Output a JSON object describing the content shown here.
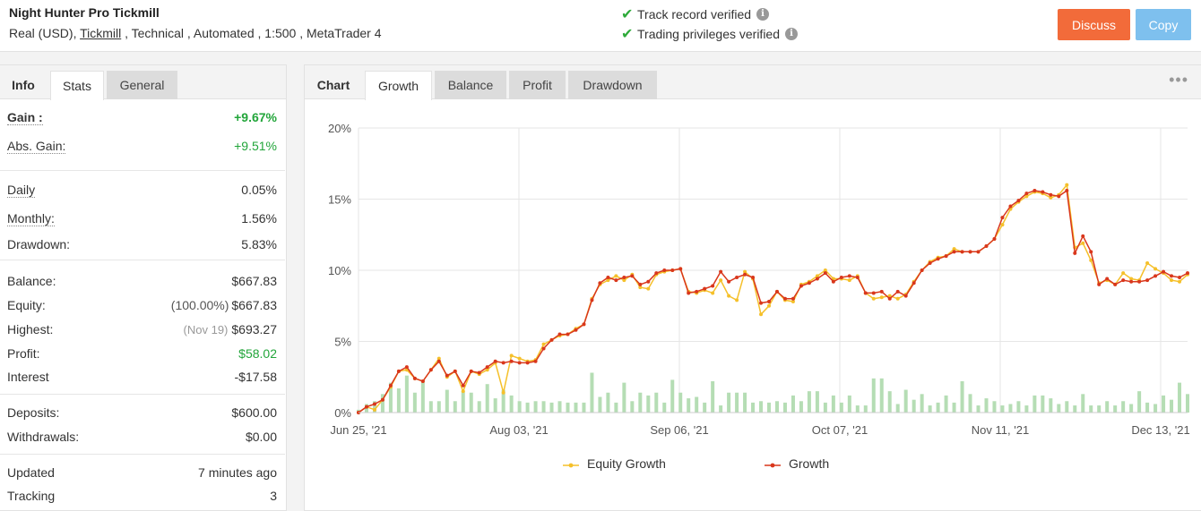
{
  "header": {
    "title": "Night Hunter Pro Tickmill",
    "subtitle_prefix": "Real (USD), ",
    "broker_link": "Tickmill",
    "subtitle_suffix": " , Technical , Automated , 1:500 , MetaTrader 4",
    "verified_1": "Track record verified",
    "verified_2": "Trading privileges verified",
    "discuss_label": "Discuss",
    "copy_label": "Copy"
  },
  "left_tabs": {
    "info": "Info",
    "stats": "Stats",
    "general": "General"
  },
  "stats": {
    "gain": {
      "label": "Gain :",
      "value": "+9.67%"
    },
    "abs_gain": {
      "label": "Abs. Gain:",
      "value": "+9.51%"
    },
    "daily": {
      "label": "Daily",
      "value": "0.05%"
    },
    "monthly": {
      "label": "Monthly:",
      "value": "1.56%"
    },
    "drawdown": {
      "label": "Drawdown:",
      "value": "5.83%"
    },
    "balance": {
      "label": "Balance:",
      "value": "$667.83"
    },
    "equity": {
      "label": "Equity:",
      "note": "(100.00%)",
      "value": "$667.83"
    },
    "highest": {
      "label": "Highest:",
      "note": "(Nov 19)",
      "value": "$693.27"
    },
    "profit": {
      "label": "Profit:",
      "value": "$58.02"
    },
    "interest": {
      "label": "Interest",
      "value": "-$17.58"
    },
    "deposits": {
      "label": "Deposits:",
      "value": "$600.00"
    },
    "withdrawals": {
      "label": "Withdrawals:",
      "value": "$0.00"
    },
    "updated": {
      "label": "Updated",
      "value": "7 minutes ago"
    },
    "tracking": {
      "label": "Tracking",
      "value": "3"
    }
  },
  "right_tabs": {
    "chart": "Chart",
    "growth": "Growth",
    "balance": "Balance",
    "profit": "Profit",
    "drawdown": "Drawdown",
    "more": "•••"
  },
  "chart_data": {
    "type": "line",
    "y_ticks": [
      "0%",
      "5%",
      "10%",
      "15%",
      "20%"
    ],
    "ylim": [
      0,
      20
    ],
    "x_ticks": [
      "Jun 25, '21",
      "Aug 03, '21",
      "Sep 06, '21",
      "Oct 07, '21",
      "Nov 11, '21",
      "Dec 13, '21"
    ],
    "grid": true,
    "legend_position": "bottom",
    "colors": {
      "equity": "#f5c02a",
      "growth": "#d9371c",
      "bars": "#b5ddb4"
    },
    "series": [
      {
        "name": "Equity Growth",
        "values": [
          0,
          0.4,
          0.2,
          0.9,
          1.8,
          2.9,
          3.0,
          2.4,
          2.2,
          3.0,
          3.8,
          2.5,
          2.9,
          1.5,
          2.9,
          2.7,
          3.0,
          3.5,
          1.4,
          4.0,
          3.8,
          3.6,
          3.7,
          4.8,
          5.1,
          5.4,
          5.5,
          5.9,
          6.2,
          8.0,
          9.0,
          9.3,
          9.6,
          9.3,
          9.7,
          8.8,
          8.7,
          9.7,
          9.9,
          10.0,
          10.1,
          8.5,
          8.4,
          8.6,
          8.4,
          9.3,
          8.2,
          7.9,
          9.9,
          9.4,
          6.9,
          7.5,
          8.5,
          7.9,
          7.8,
          9.0,
          9.2,
          9.6,
          10.0,
          9.4,
          9.4,
          9.3,
          9.6,
          8.4,
          8.0,
          8.1,
          8.2,
          8.0,
          8.3,
          9.2,
          10.0,
          10.6,
          10.9,
          11.0,
          11.5,
          11.3,
          11.3,
          11.3,
          11.7,
          12.2,
          13.2,
          14.3,
          14.8,
          15.2,
          15.5,
          15.4,
          15.1,
          15.3,
          16.0,
          11.6,
          11.9,
          10.7,
          9.1,
          9.3,
          9.0,
          9.8,
          9.4,
          9.3,
          10.5,
          10.1,
          9.8,
          9.3,
          9.2,
          9.7
        ]
      },
      {
        "name": "Growth",
        "values": [
          0,
          0.4,
          0.6,
          0.9,
          1.9,
          2.9,
          3.2,
          2.4,
          2.2,
          3.0,
          3.6,
          2.6,
          2.9,
          1.9,
          2.9,
          2.8,
          3.2,
          3.6,
          3.5,
          3.6,
          3.5,
          3.5,
          3.6,
          4.5,
          5.1,
          5.5,
          5.5,
          5.8,
          6.2,
          7.9,
          9.1,
          9.5,
          9.3,
          9.5,
          9.6,
          9.0,
          9.2,
          9.8,
          10.0,
          10.0,
          10.1,
          8.4,
          8.5,
          8.7,
          8.9,
          9.9,
          9.2,
          9.5,
          9.7,
          9.5,
          7.7,
          7.8,
          8.5,
          8.0,
          8.0,
          8.9,
          9.1,
          9.4,
          9.8,
          9.2,
          9.5,
          9.6,
          9.5,
          8.4,
          8.4,
          8.5,
          8.0,
          8.5,
          8.2,
          9.1,
          10.0,
          10.5,
          10.8,
          11.0,
          11.3,
          11.3,
          11.3,
          11.3,
          11.7,
          12.2,
          13.7,
          14.5,
          14.9,
          15.4,
          15.6,
          15.5,
          15.3,
          15.2,
          15.6,
          11.2,
          12.4,
          11.3,
          9.0,
          9.4,
          9.0,
          9.3,
          9.2,
          9.2,
          9.3,
          9.6,
          9.9,
          9.6,
          9.5,
          9.8
        ]
      }
    ],
    "bar_series": {
      "name": "",
      "values": [
        0.2,
        0.6,
        0.8,
        1.3,
        2.1,
        1.7,
        2.6,
        1.4,
        2.3,
        0.8,
        0.8,
        1.6,
        0.8,
        1.5,
        1.4,
        0.8,
        2.0,
        1.0,
        1.6,
        1.2,
        0.8,
        0.7,
        0.8,
        0.8,
        0.7,
        0.8,
        0.7,
        0.7,
        0.7,
        2.8,
        1.1,
        1.4,
        0.7,
        2.1,
        0.8,
        1.4,
        1.2,
        1.4,
        0.7,
        2.3,
        1.4,
        1.0,
        1.1,
        0.7,
        2.2,
        0.5,
        1.4,
        1.4,
        1.4,
        0.7,
        0.8,
        0.7,
        0.8,
        0.7,
        1.2,
        0.8,
        1.5,
        1.5,
        0.7,
        1.2,
        0.7,
        1.2,
        0.5,
        0.5,
        2.4,
        2.4,
        1.5,
        0.6,
        1.6,
        0.9,
        1.3,
        0.5,
        0.7,
        1.2,
        0.7,
        2.2,
        1.3,
        0.5,
        1.0,
        0.8,
        0.5,
        0.6,
        0.8,
        0.5,
        1.2,
        1.2,
        1.0,
        0.6,
        0.8,
        0.5,
        1.3,
        0.5,
        0.5,
        0.8,
        0.5,
        0.8,
        0.6,
        1.5,
        0.7,
        0.6,
        1.2,
        0.9,
        2.1,
        1.3
      ]
    }
  }
}
